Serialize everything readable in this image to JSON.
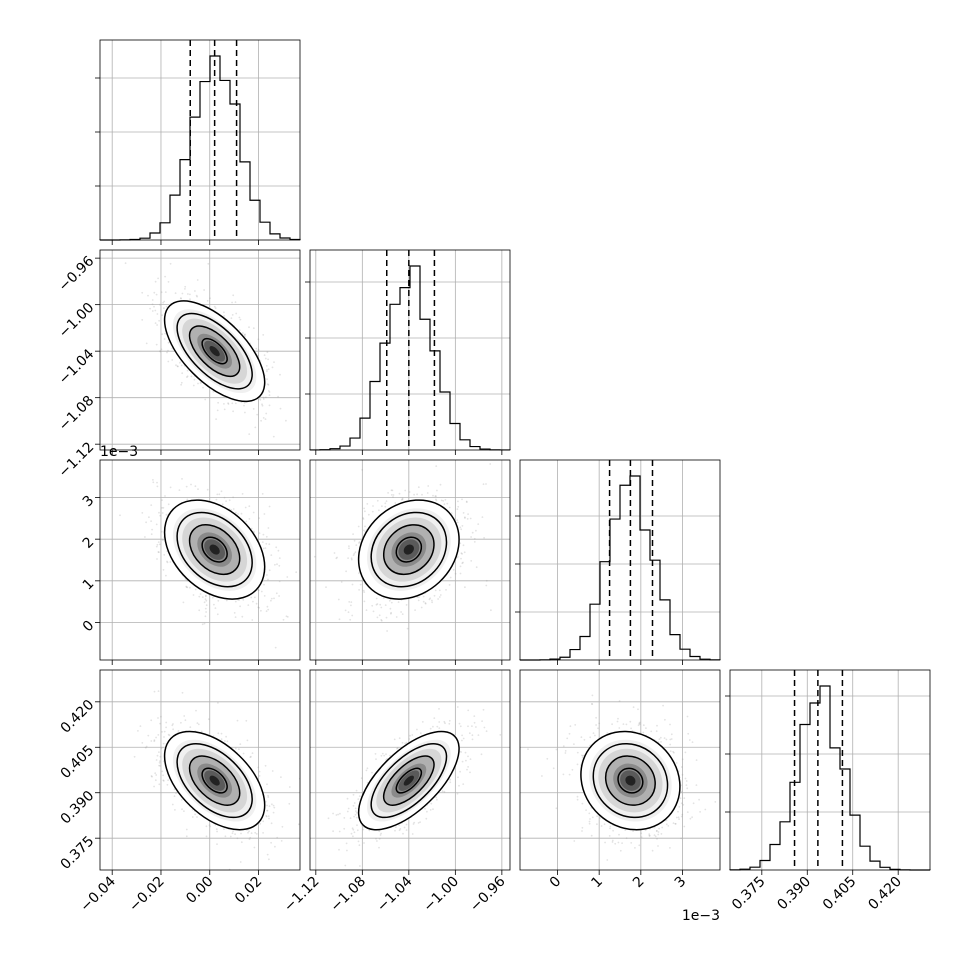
{
  "chart_data": {
    "type": "corner",
    "grid": true,
    "colors": {
      "line": "#000000",
      "grid": "#b0b0b0",
      "scatter": "#9a9a9a",
      "background": "#ffffff"
    },
    "parameters": [
      {
        "range": [
          -0.045,
          0.037
        ],
        "mean": 0.002,
        "sd": 0.0095,
        "ticks": [
          -0.04,
          -0.02,
          0.0,
          0.02
        ],
        "tick_labels": [
          "−0.04",
          "−0.02",
          "0.00",
          "0.02"
        ],
        "offset_label": "",
        "quantiles": [
          -0.008,
          0.002,
          0.011
        ],
        "hist_ticks": [
          0.27,
          0.54,
          0.81
        ]
      },
      {
        "range": [
          -1.125,
          -0.953
        ],
        "mean": -1.04,
        "sd": 0.02,
        "ticks": [
          -1.12,
          -1.08,
          -1.04,
          -1.0,
          -0.96
        ],
        "tick_labels": [
          "−1.12",
          "−1.08",
          "−1.04",
          "−1.00",
          "−0.96"
        ],
        "offset_label": "",
        "quantiles": [
          -1.059,
          -1.04,
          -1.018
        ],
        "hist_ticks": [
          0.28,
          0.56,
          0.84
        ]
      },
      {
        "range": [
          -0.0009,
          0.0039
        ],
        "mean": 0.00175,
        "sd": 0.00055,
        "ticks": [
          0,
          0.001,
          0.002,
          0.003
        ],
        "tick_labels": [
          "0",
          "1",
          "2",
          "3"
        ],
        "offset_label": "1e−3",
        "quantiles": [
          0.00125,
          0.00175,
          0.00228
        ],
        "hist_ticks": [
          0.24,
          0.48,
          0.72
        ]
      },
      {
        "range": [
          0.3645,
          0.4305
        ],
        "mean": 0.394,
        "sd": 0.0075,
        "ticks": [
          0.375,
          0.39,
          0.405,
          0.42
        ],
        "tick_labels": [
          "0.375",
          "0.390",
          "0.405",
          "0.420"
        ],
        "offset_label": "",
        "quantiles": [
          0.3858,
          0.3935,
          0.4016
        ],
        "hist_ticks": [
          0.29,
          0.58,
          0.87
        ]
      }
    ],
    "correlations": [
      [
        1.0,
        -0.62,
        -0.35,
        -0.5
      ],
      [
        -0.62,
        1.0,
        0.2,
        0.65
      ],
      [
        -0.35,
        0.2,
        1.0,
        -0.12
      ],
      [
        -0.5,
        0.65,
        -0.12,
        1.0
      ]
    ],
    "histogram_bins": 20,
    "contour_levels_sigma": [
      0.5,
      1.0,
      1.5,
      2.0
    ]
  }
}
